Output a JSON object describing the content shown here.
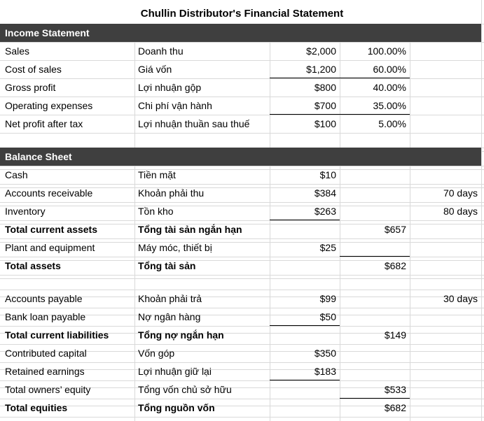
{
  "title": "Chullin Distributor's Financial Statement",
  "income_statement": {
    "header": "Income Statement",
    "rows": [
      {
        "en": "Sales",
        "vi": "Doanh thu",
        "amount": "$2,000",
        "pct": "100.00%"
      },
      {
        "en": "Cost of sales",
        "vi": "Giá vốn",
        "amount": "$1,200",
        "pct": "60.00%"
      },
      {
        "en": "Gross profit",
        "vi": "Lợi nhuận gộp",
        "amount": "$800",
        "pct": "40.00%"
      },
      {
        "en": "Operating expenses",
        "vi": "Chi phí vận hành",
        "amount": "$700",
        "pct": "35.00%"
      },
      {
        "en": "Net profit after tax",
        "vi": "Lợi nhuận thuần sau thuế",
        "amount": "$100",
        "pct": "5.00%"
      }
    ]
  },
  "balance_sheet": {
    "header": "Balance Sheet",
    "rows": [
      {
        "en": "Cash",
        "vi": "Tiền mặt",
        "amount": "$10",
        "total": "",
        "days": ""
      },
      {
        "en": "Accounts receivable",
        "vi": "Khoản phải thu",
        "amount": "$384",
        "total": "",
        "days": "70 days"
      },
      {
        "en": "Inventory",
        "vi": "Tồn kho",
        "amount": "$263",
        "total": "",
        "days": "80 days"
      },
      {
        "en": "Total current assets",
        "vi": "Tổng tài sản ngắn hạn",
        "amount": "",
        "total": "$657",
        "days": ""
      },
      {
        "en": "Plant and equipment",
        "vi": "Máy móc, thiết bị",
        "amount": "$25",
        "total": "",
        "days": ""
      },
      {
        "en": "Total assets",
        "vi": "Tổng tài sản",
        "amount": "",
        "total": "$682",
        "days": ""
      },
      {
        "en": "Accounts payable",
        "vi": "Khoản phải trả",
        "amount": "$99",
        "total": "",
        "days": "30 days"
      },
      {
        "en": "Bank loan payable",
        "vi": "Nợ ngân hàng",
        "amount": "$50",
        "total": "",
        "days": ""
      },
      {
        "en": "Total current liabilities",
        "vi": "Tổng nợ ngắn hạn",
        "amount": "",
        "total": "$149",
        "days": ""
      },
      {
        "en": "Contributed capital",
        "vi": "Vốn góp",
        "amount": "$350",
        "total": "",
        "days": ""
      },
      {
        "en": "Retained earnings",
        "vi": "Lợi nhuận giữ lại",
        "amount": "$183",
        "total": "",
        "days": ""
      },
      {
        "en": "Total owners’ equity",
        "vi": "Tổng vốn chủ sở hữu",
        "amount": "",
        "total": "$533",
        "days": ""
      },
      {
        "en": "Total equities",
        "vi": "Tổng nguồn vốn",
        "amount": "",
        "total": "$682",
        "days": ""
      }
    ]
  }
}
